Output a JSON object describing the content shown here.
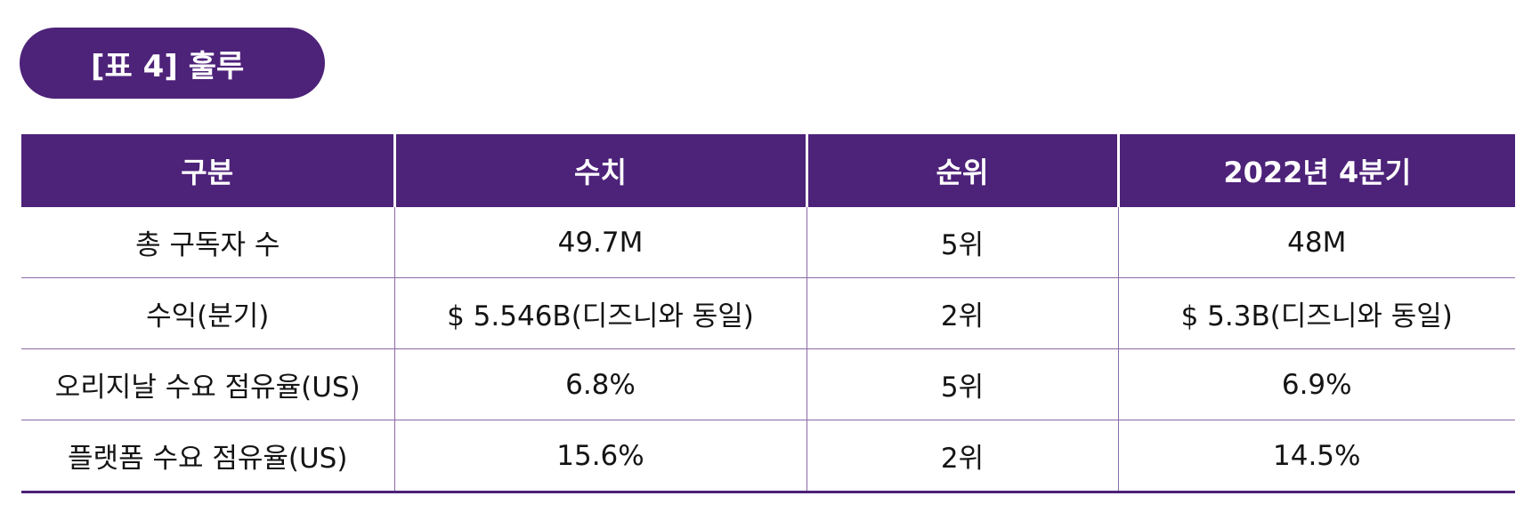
{
  "title": "[표 4] 훌루",
  "colors": {
    "accent": "#4d2279",
    "header_text": "#ffffff",
    "body_text": "#141414",
    "grid_line": "#8a6aa8"
  },
  "table": {
    "headers": [
      "구분",
      "수치",
      "순위",
      "2022년 4분기"
    ],
    "rows": [
      [
        "총 구독자 수",
        "49.7M",
        "5위",
        "48M"
      ],
      [
        "수익(분기)",
        "$ 5.546B(디즈니와 동일)",
        "2위",
        "$ 5.3B(디즈니와 동일)"
      ],
      [
        "오리지날 수요 점유율(US)",
        "6.8%",
        "5위",
        "6.9%"
      ],
      [
        "플랫폼 수요 점유율(US)",
        "15.6%",
        "2위",
        "14.5%"
      ]
    ]
  }
}
